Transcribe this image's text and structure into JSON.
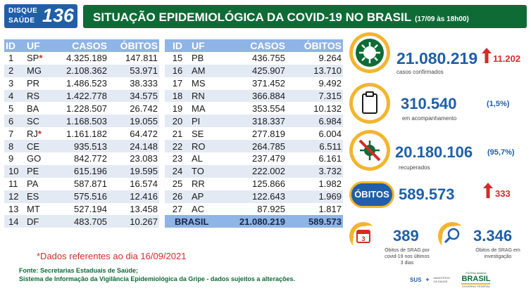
{
  "header": {
    "logo_line1": "DISQUE",
    "logo_line2": "SAÚDE",
    "logo_number": "136",
    "title": "SITUAÇÃO EPIDEMIOLÓGICA DA COVID-19 NO BRASIL",
    "date": "(17/09 às 18h00)"
  },
  "table": {
    "headers": [
      "ID",
      "UF",
      "CASOS",
      "ÓBITOS"
    ],
    "left": [
      {
        "id": "1",
        "uf": "SP",
        "star": true,
        "casos": "4.325.189",
        "obitos": "147.811"
      },
      {
        "id": "2",
        "uf": "MG",
        "star": false,
        "casos": "2.108.362",
        "obitos": "53.971"
      },
      {
        "id": "3",
        "uf": "PR",
        "star": false,
        "casos": "1.486.523",
        "obitos": "38.333"
      },
      {
        "id": "4",
        "uf": "RS",
        "star": false,
        "casos": "1.422.778",
        "obitos": "34.575"
      },
      {
        "id": "5",
        "uf": "BA",
        "star": false,
        "casos": "1.228.507",
        "obitos": "26.742"
      },
      {
        "id": "6",
        "uf": "SC",
        "star": false,
        "casos": "1.168.503",
        "obitos": "19.055"
      },
      {
        "id": "7",
        "uf": "RJ",
        "star": true,
        "casos": "1.161.182",
        "obitos": "64.472"
      },
      {
        "id": "8",
        "uf": "CE",
        "star": false,
        "casos": "935.513",
        "obitos": "24.148"
      },
      {
        "id": "9",
        "uf": "GO",
        "star": false,
        "casos": "842.772",
        "obitos": "23.083"
      },
      {
        "id": "10",
        "uf": "PE",
        "star": false,
        "casos": "615.196",
        "obitos": "19.595"
      },
      {
        "id": "11",
        "uf": "PA",
        "star": false,
        "casos": "587.871",
        "obitos": "16.574"
      },
      {
        "id": "12",
        "uf": "ES",
        "star": false,
        "casos": "575.516",
        "obitos": "12.416"
      },
      {
        "id": "13",
        "uf": "MT",
        "star": false,
        "casos": "527.194",
        "obitos": "13.458"
      },
      {
        "id": "14",
        "uf": "DF",
        "star": false,
        "casos": "483.705",
        "obitos": "10.267"
      }
    ],
    "right": [
      {
        "id": "15",
        "uf": "PB",
        "casos": "436.755",
        "obitos": "9.264"
      },
      {
        "id": "16",
        "uf": "AM",
        "casos": "425.907",
        "obitos": "13.710"
      },
      {
        "id": "17",
        "uf": "MS",
        "casos": "371.452",
        "obitos": "9.492"
      },
      {
        "id": "18",
        "uf": "RN",
        "casos": "366.884",
        "obitos": "7.315"
      },
      {
        "id": "19",
        "uf": "MA",
        "casos": "353.554",
        "obitos": "10.132"
      },
      {
        "id": "20",
        "uf": "PI",
        "casos": "318.337",
        "obitos": "6.984"
      },
      {
        "id": "21",
        "uf": "SE",
        "casos": "277.819",
        "obitos": "6.004"
      },
      {
        "id": "22",
        "uf": "RO",
        "casos": "264.785",
        "obitos": "6.511"
      },
      {
        "id": "23",
        "uf": "AL",
        "casos": "237.479",
        "obitos": "6.161"
      },
      {
        "id": "24",
        "uf": "TO",
        "casos": "222.002",
        "obitos": "3.732"
      },
      {
        "id": "25",
        "uf": "RR",
        "casos": "125.866",
        "obitos": "1.982"
      },
      {
        "id": "26",
        "uf": "AP",
        "casos": "122.643",
        "obitos": "1.969"
      },
      {
        "id": "27",
        "uf": "AC",
        "casos": "87.925",
        "obitos": "1.817"
      }
    ],
    "total": {
      "label": "BRASIL",
      "casos": "21.080.219",
      "obitos": "589.573"
    }
  },
  "stats": {
    "confirmed": {
      "value": "21.080.219",
      "delta": "11.202",
      "caption": "casos confirmados",
      "icon": "virus-icon"
    },
    "monitoring": {
      "value": "310.540",
      "pct": "(1,5%)",
      "caption": "em acompanhamento",
      "icon": "clipboard-icon"
    },
    "recovered": {
      "value": "20.180.106",
      "pct": "(95,7%)",
      "caption": "recuperados",
      "icon": "crossed-virus-icon"
    },
    "deaths": {
      "badge": "ÓBITOS",
      "value": "589.573",
      "delta": "333"
    },
    "srag_recent": {
      "value": "389",
      "caption1": "Óbitos de SRAG por",
      "caption2": "covid-19 nos últimos",
      "caption3": "3 dias",
      "icon": "calendar-icon"
    },
    "srag_investigation": {
      "value": "3.346",
      "caption1": "Óbitos de SRAG em",
      "caption2": "investigação",
      "icon": "magnifier-icon"
    }
  },
  "footer": {
    "note": "*Dados referentes ao dia 16/09/2021",
    "source1": "Fonte: Secretarias Estaduais de Saúde;",
    "source2": "Sistema de Informação da Vigilância Epidemiológica da Gripe - dados sujeitos a alterações.",
    "logo_sus": "SUS",
    "logo_ministry": "MINISTÉRIO DA SAÚDE",
    "logo_brasil_top": "PÁTRIA AMADA",
    "logo_brasil": "BRASIL",
    "logo_brasil_sub": "GOVERNO FEDERAL"
  },
  "colors": {
    "green": "#0e6b36",
    "blue": "#1f5fa8",
    "header_row": "#8fb4e6",
    "yellow": "#f2b52e",
    "red": "#d42a2a"
  }
}
